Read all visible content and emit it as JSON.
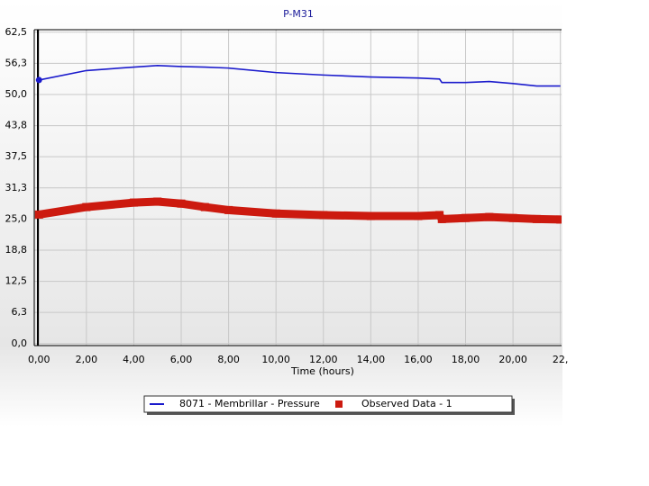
{
  "chart_data": {
    "type": "line",
    "title": "P-M31",
    "xlabel": "Time (hours)",
    "x": [
      0,
      2,
      4,
      5,
      6,
      7,
      8,
      10,
      12,
      14,
      16,
      16.9,
      17,
      18,
      19,
      20,
      21,
      22
    ],
    "series": [
      {
        "name": "8071 - Membrillar - Pressure",
        "color": "#1a1acc",
        "marker": "line",
        "values": [
          52.9,
          54.8,
          55.5,
          55.8,
          55.6,
          55.5,
          55.3,
          54.4,
          53.9,
          53.5,
          53.3,
          53.1,
          52.4,
          52.4,
          52.6,
          52.2,
          51.7,
          51.7
        ]
      },
      {
        "name": "Observed Data - 1",
        "color": "#cc1a0f",
        "marker": "square",
        "values": [
          25.9,
          27.4,
          28.3,
          28.5,
          28.1,
          27.4,
          26.8,
          26.1,
          25.8,
          25.6,
          25.6,
          25.8,
          25.0,
          25.2,
          25.4,
          25.2,
          25.0,
          24.9
        ]
      }
    ],
    "xlim": [
      -0.2,
      22.05
    ],
    "xticks": [
      {
        "value": 0,
        "label": "0,00"
      },
      {
        "value": 2,
        "label": "2,00"
      },
      {
        "value": 4,
        "label": "4,00"
      },
      {
        "value": 6,
        "label": "6,00"
      },
      {
        "value": 8,
        "label": "8,00"
      },
      {
        "value": 10,
        "label": "10,00"
      },
      {
        "value": 12,
        "label": "12,00"
      },
      {
        "value": 14,
        "label": "14,00"
      },
      {
        "value": 16,
        "label": "16,00"
      },
      {
        "value": 18,
        "label": "18,00"
      },
      {
        "value": 20,
        "label": "20,00"
      },
      {
        "value": 22,
        "label": "22,"
      }
    ],
    "ylim": [
      -0.4,
      63
    ],
    "yticks": [
      {
        "value": 0,
        "label": "0,0"
      },
      {
        "value": 6.25,
        "label": "6,3"
      },
      {
        "value": 12.5,
        "label": "12,5"
      },
      {
        "value": 18.75,
        "label": "18,8"
      },
      {
        "value": 25,
        "label": "25,0"
      },
      {
        "value": 31.25,
        "label": "31,3"
      },
      {
        "value": 37.5,
        "label": "37,5"
      },
      {
        "value": 43.75,
        "label": "43,8"
      },
      {
        "value": 50,
        "label": "50,0"
      },
      {
        "value": 56.25,
        "label": "56,3"
      },
      {
        "value": 62.5,
        "label": "62,5"
      }
    ],
    "grid": true
  }
}
